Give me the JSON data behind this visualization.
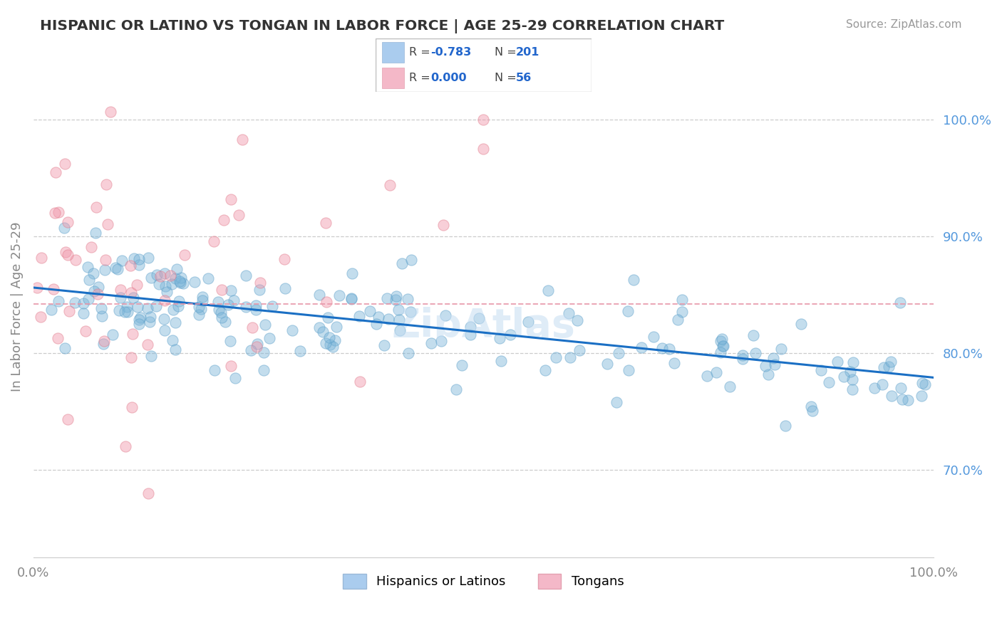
{
  "title": "HISPANIC OR LATINO VS TONGAN IN LABOR FORCE | AGE 25-29 CORRELATION CHART",
  "source": "Source: ZipAtlas.com",
  "ylabel": "In Labor Force | Age 25-29",
  "y_tick_values": [
    0.7,
    0.8,
    0.9,
    1.0
  ],
  "xlim": [
    0.0,
    1.0
  ],
  "ylim": [
    0.625,
    1.055
  ],
  "blue_line_x": [
    0.0,
    1.0
  ],
  "blue_line_y": [
    0.856,
    0.779
  ],
  "pink_line_y": 0.842,
  "watermark": "ZipAtlas",
  "dot_size": 120,
  "dot_alpha": 0.45,
  "blue_color": "#7ab4d8",
  "pink_color": "#f096aa",
  "blue_edge_color": "#5a9ec8",
  "pink_edge_color": "#e07888",
  "grid_color": "#cccccc",
  "tick_label_color": "#5599dd",
  "legend_R1": "-0.783",
  "legend_N1": "201",
  "legend_R2": "0.000",
  "legend_N2": "56",
  "legend_color1": "#aaccee",
  "legend_color2": "#f4b8c8"
}
